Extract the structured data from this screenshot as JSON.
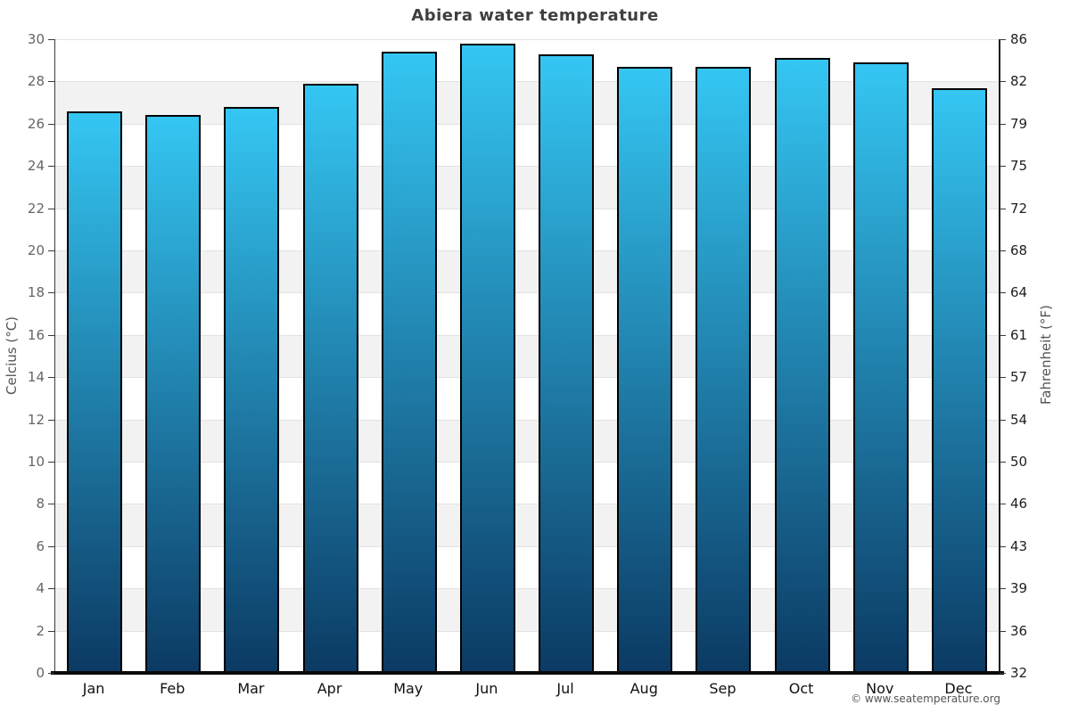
{
  "chart_data": {
    "type": "bar",
    "title": "Abiera water temperature",
    "categories": [
      "Jan",
      "Feb",
      "Mar",
      "Apr",
      "May",
      "Jun",
      "Jul",
      "Aug",
      "Sep",
      "Oct",
      "Nov",
      "Dec"
    ],
    "values": [
      26.6,
      26.4,
      26.8,
      27.9,
      29.4,
      29.8,
      29.3,
      28.7,
      28.7,
      29.1,
      28.9,
      27.7
    ],
    "ylabel_left": "Celcius (°C)",
    "ylabel_right": "Fahrenheit (°F)",
    "ylim": [
      0,
      30
    ],
    "ytick_step": 2,
    "yticks_left": [
      0,
      2,
      4,
      6,
      8,
      10,
      12,
      14,
      16,
      18,
      20,
      22,
      24,
      26,
      28,
      30
    ],
    "yticks_right": [
      32,
      36,
      39,
      43,
      46,
      50,
      54,
      57,
      61,
      64,
      68,
      72,
      75,
      79,
      82,
      86
    ],
    "grid": "alternating-horizontal-bands",
    "legend": "none"
  },
  "footer": {
    "copyright": "© www.seatemperature.org"
  },
  "colors": {
    "bar_gradient_top": "#35C6F3",
    "bar_gradient_bottom": "#0B3A63",
    "bar_border": "#000000",
    "band_alt": "#f2f2f2",
    "band_base": "#ffffff",
    "gridline": "#e2e2e2",
    "title_text": "#3f3f3f",
    "tick_text_left": "#666666",
    "tick_text_right": "#1f1f1f",
    "month_text": "#111111",
    "axis_title_text": "#555555"
  }
}
